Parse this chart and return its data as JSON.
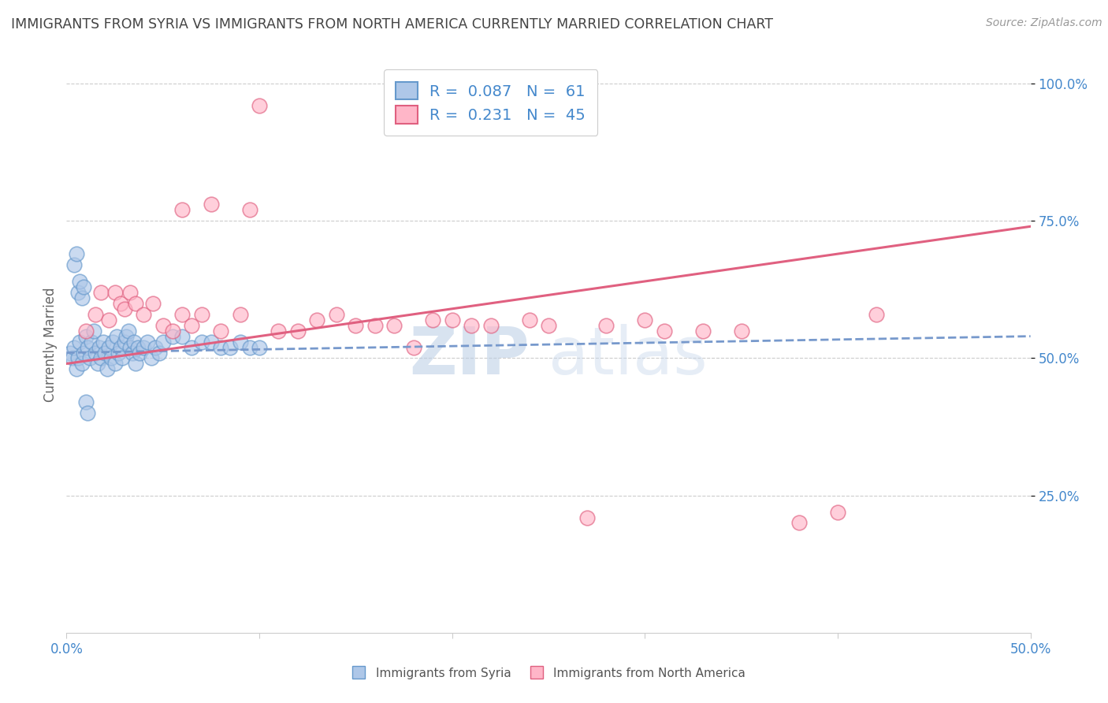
{
  "title": "IMMIGRANTS FROM SYRIA VS IMMIGRANTS FROM NORTH AMERICA CURRENTLY MARRIED CORRELATION CHART",
  "source": "Source: ZipAtlas.com",
  "ylabel": "Currently Married",
  "xlim": [
    0.0,
    0.5
  ],
  "ylim": [
    0.0,
    1.05
  ],
  "yticks": [
    0.25,
    0.5,
    0.75,
    1.0
  ],
  "ytick_labels": [
    "25.0%",
    "50.0%",
    "75.0%",
    "100.0%"
  ],
  "xticks": [
    0.0,
    0.1,
    0.2,
    0.3,
    0.4,
    0.5
  ],
  "xtick_labels": [
    "0.0%",
    "",
    "",
    "",
    "",
    "50.0%"
  ],
  "legend_text1": "R =  0.087   N =  61",
  "legend_text2": "R =  0.231   N =  45",
  "blue_fill": "#aec7e8",
  "blue_edge": "#6699cc",
  "pink_fill": "#ffb6c8",
  "pink_edge": "#e06080",
  "blue_line": "#7799cc",
  "pink_line": "#e06080",
  "watermark": "ZIPatlas",
  "background_color": "#ffffff",
  "grid_color": "#cccccc",
  "title_color": "#444444",
  "axis_label_color": "#4488cc",
  "legend_text_color": "#4488cc",
  "syria_x": [
    0.002,
    0.003,
    0.004,
    0.005,
    0.006,
    0.007,
    0.008,
    0.009,
    0.01,
    0.011,
    0.012,
    0.013,
    0.014,
    0.015,
    0.016,
    0.017,
    0.018,
    0.019,
    0.02,
    0.021,
    0.022,
    0.023,
    0.024,
    0.025,
    0.026,
    0.027,
    0.028,
    0.029,
    0.03,
    0.031,
    0.032,
    0.033,
    0.034,
    0.035,
    0.036,
    0.037,
    0.038,
    0.04,
    0.042,
    0.044,
    0.046,
    0.048,
    0.05,
    0.055,
    0.06,
    0.065,
    0.07,
    0.075,
    0.08,
    0.085,
    0.09,
    0.095,
    0.1,
    0.004,
    0.005,
    0.006,
    0.007,
    0.008,
    0.009,
    0.01,
    0.011
  ],
  "syria_y": [
    0.51,
    0.5,
    0.52,
    0.48,
    0.5,
    0.53,
    0.49,
    0.51,
    0.54,
    0.52,
    0.5,
    0.53,
    0.55,
    0.51,
    0.49,
    0.52,
    0.5,
    0.53,
    0.51,
    0.48,
    0.52,
    0.5,
    0.53,
    0.49,
    0.54,
    0.51,
    0.52,
    0.5,
    0.53,
    0.54,
    0.55,
    0.52,
    0.51,
    0.53,
    0.49,
    0.52,
    0.51,
    0.52,
    0.53,
    0.5,
    0.52,
    0.51,
    0.53,
    0.54,
    0.54,
    0.52,
    0.53,
    0.53,
    0.52,
    0.52,
    0.53,
    0.52,
    0.52,
    0.67,
    0.69,
    0.62,
    0.64,
    0.61,
    0.63,
    0.42,
    0.4
  ],
  "northam_x": [
    0.01,
    0.015,
    0.018,
    0.022,
    0.025,
    0.028,
    0.03,
    0.033,
    0.036,
    0.04,
    0.045,
    0.05,
    0.055,
    0.06,
    0.065,
    0.07,
    0.08,
    0.09,
    0.1,
    0.12,
    0.14,
    0.16,
    0.18,
    0.2,
    0.22,
    0.25,
    0.28,
    0.3,
    0.33,
    0.35,
    0.38,
    0.4,
    0.42,
    0.06,
    0.075,
    0.095,
    0.11,
    0.13,
    0.15,
    0.17,
    0.19,
    0.21,
    0.24,
    0.27,
    0.31
  ],
  "northam_y": [
    0.55,
    0.58,
    0.62,
    0.57,
    0.62,
    0.6,
    0.59,
    0.62,
    0.6,
    0.58,
    0.6,
    0.56,
    0.55,
    0.58,
    0.56,
    0.58,
    0.55,
    0.58,
    0.96,
    0.55,
    0.58,
    0.56,
    0.52,
    0.57,
    0.56,
    0.56,
    0.56,
    0.57,
    0.55,
    0.55,
    0.2,
    0.22,
    0.58,
    0.77,
    0.78,
    0.77,
    0.55,
    0.57,
    0.56,
    0.56,
    0.57,
    0.56,
    0.57,
    0.21,
    0.55
  ],
  "syria_trend_x": [
    0.0,
    0.5
  ],
  "syria_trend_y": [
    0.51,
    0.54
  ],
  "northam_trend_x": [
    0.0,
    0.5
  ],
  "northam_trend_y": [
    0.49,
    0.74
  ]
}
